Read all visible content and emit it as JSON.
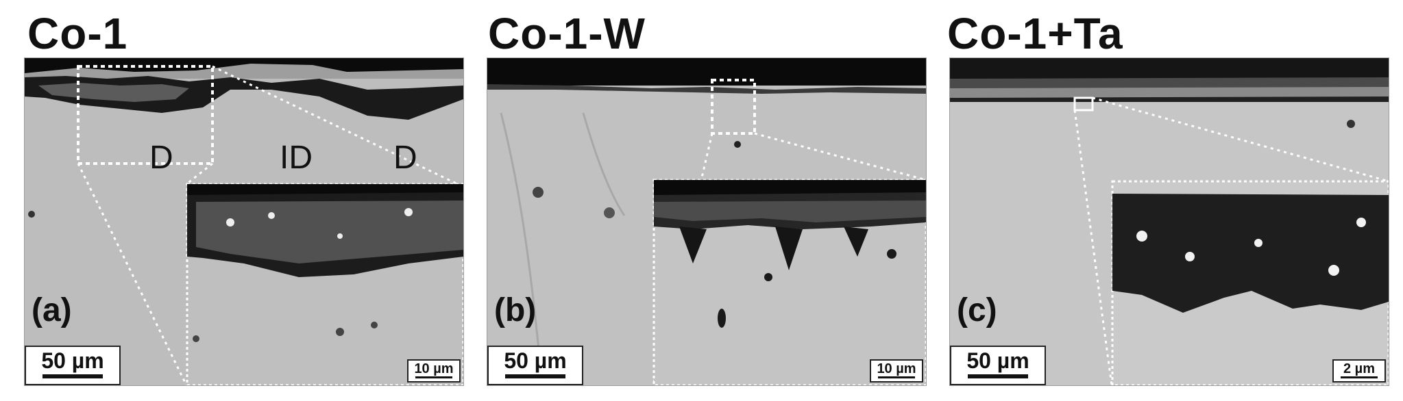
{
  "panels": [
    {
      "title": "Co-1",
      "letter": "(a)",
      "scale": "50 µm",
      "inset_scale": "10 µm"
    },
    {
      "title": "Co-1-W",
      "letter": "(b)",
      "scale": "50 µm",
      "inset_scale": "10 µm"
    },
    {
      "title": "Co-1+Ta",
      "letter": "(c)",
      "scale": "50 µm",
      "inset_scale": "2 µm"
    }
  ],
  "regions": {
    "left": "D",
    "middle": "ID",
    "right": "D"
  }
}
